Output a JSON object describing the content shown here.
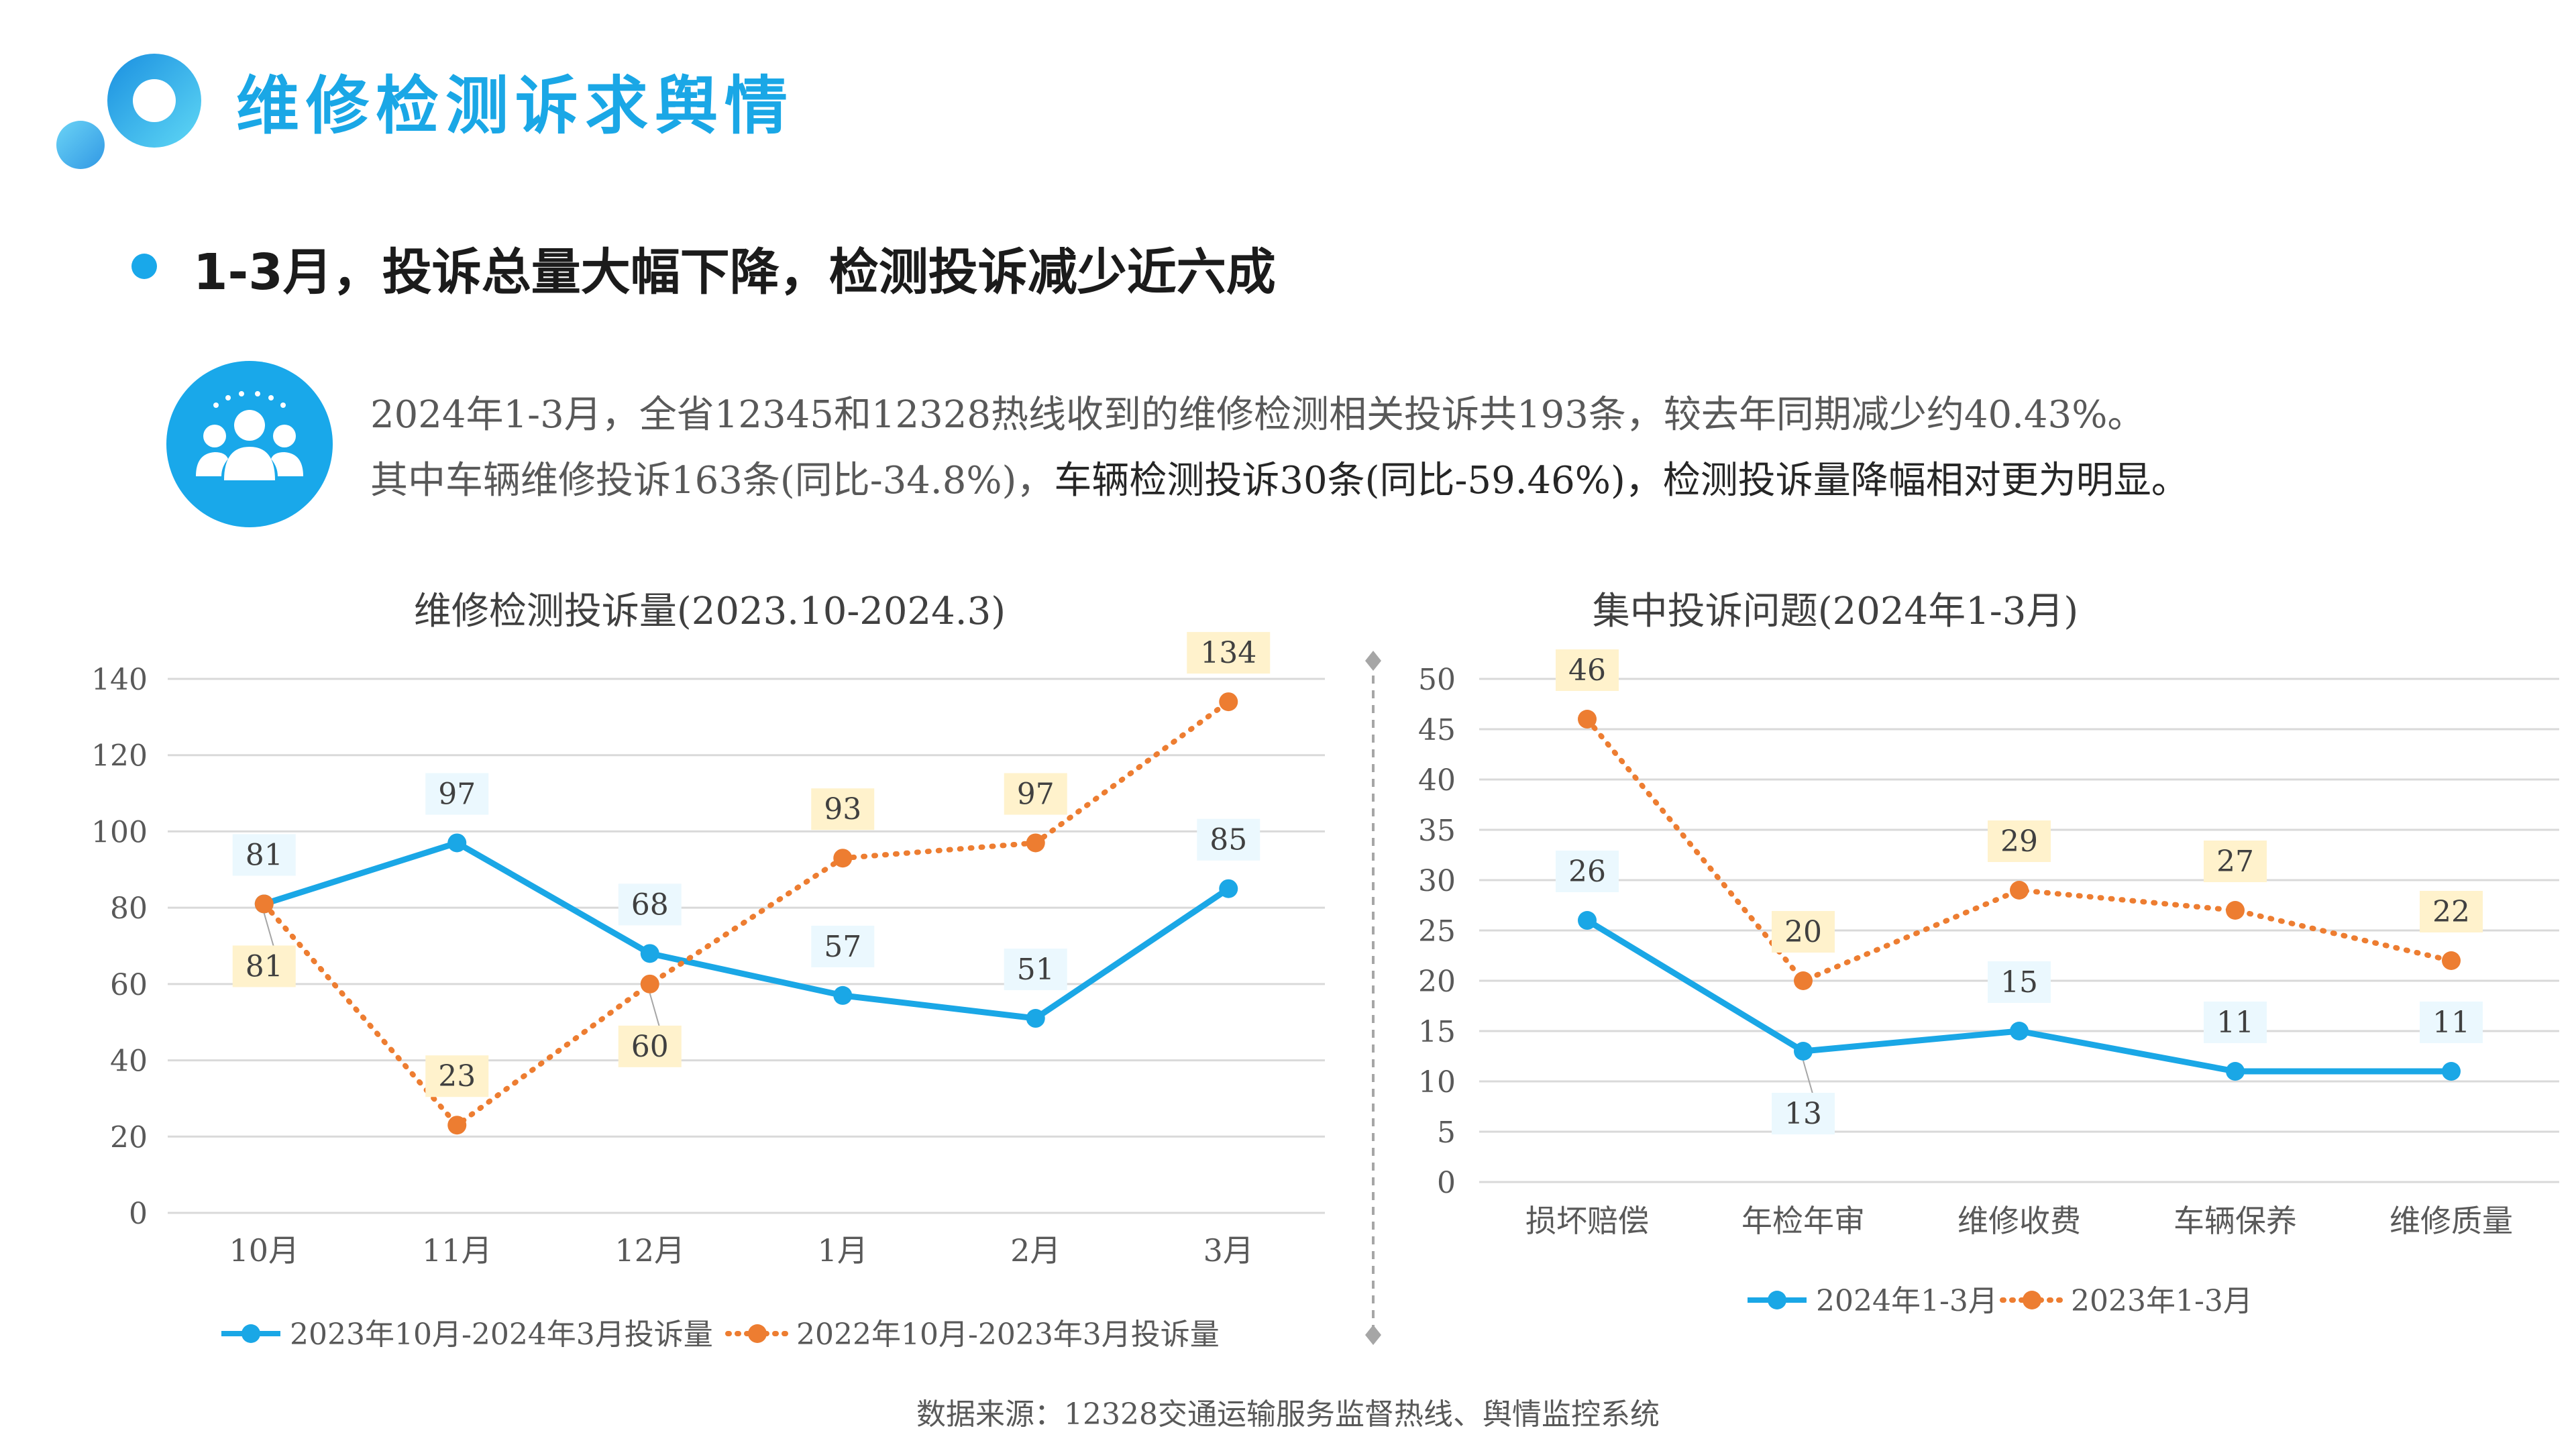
{
  "page": {
    "title": "维修检测诉求舆情",
    "headline": "1-3月，投诉总量大幅下降，检测投诉减少近六成",
    "desc_line1": "2024年1-3月，全省12345和12328热线收到的维修检测相关投诉共193条，较去年同期减少约40.43%。",
    "desc_line2_normal": "其中车辆维修投诉163条(同比-34.8%)，",
    "desc_line2_strong": "车辆检测投诉30条(同比-59.46%)，检测投诉量降幅相对更为明显。",
    "source": "数据来源：12328交通运输服务监督热线、舆情监控系统"
  },
  "colors": {
    "accent": "#19a8ea",
    "series_current": "#1aa7e6",
    "series_previous": "#ed7d31",
    "label_current_bg": "#ebf8fe",
    "label_previous_bg": "#fff2cc",
    "grid": "#d9d9d9"
  },
  "chart_data": [
    {
      "type": "line",
      "title": "维修检测投诉量(2023.10-2024.3)",
      "categories": [
        "10月",
        "11月",
        "12月",
        "1月",
        "2月",
        "3月"
      ],
      "series": [
        {
          "name": "2023年10月-2024年3月投诉量",
          "values": [
            81,
            97,
            68,
            57,
            51,
            85
          ],
          "style": "solid"
        },
        {
          "name": "2022年10月-2023年3月投诉量",
          "values": [
            81,
            23,
            60,
            93,
            97,
            134
          ],
          "style": "dotted"
        }
      ],
      "ylim": [
        0,
        140
      ],
      "yticks": [
        0,
        20,
        40,
        60,
        80,
        100,
        120,
        140
      ],
      "grid": true,
      "legend": "bottom"
    },
    {
      "type": "line",
      "title": "集中投诉问题(2024年1-3月)",
      "categories": [
        "损坏赔偿",
        "年检年审",
        "维修收费",
        "车辆保养",
        "维修质量"
      ],
      "series": [
        {
          "name": "2024年1-3月",
          "values": [
            26,
            13,
            15,
            11,
            11
          ],
          "style": "solid"
        },
        {
          "name": "2023年1-3月",
          "values": [
            46,
            20,
            29,
            27,
            22
          ],
          "style": "dotted"
        }
      ],
      "ylim": [
        0,
        50
      ],
      "yticks": [
        0,
        5,
        10,
        15,
        20,
        25,
        30,
        35,
        40,
        45,
        50
      ],
      "grid": true,
      "legend": "bottom"
    }
  ]
}
